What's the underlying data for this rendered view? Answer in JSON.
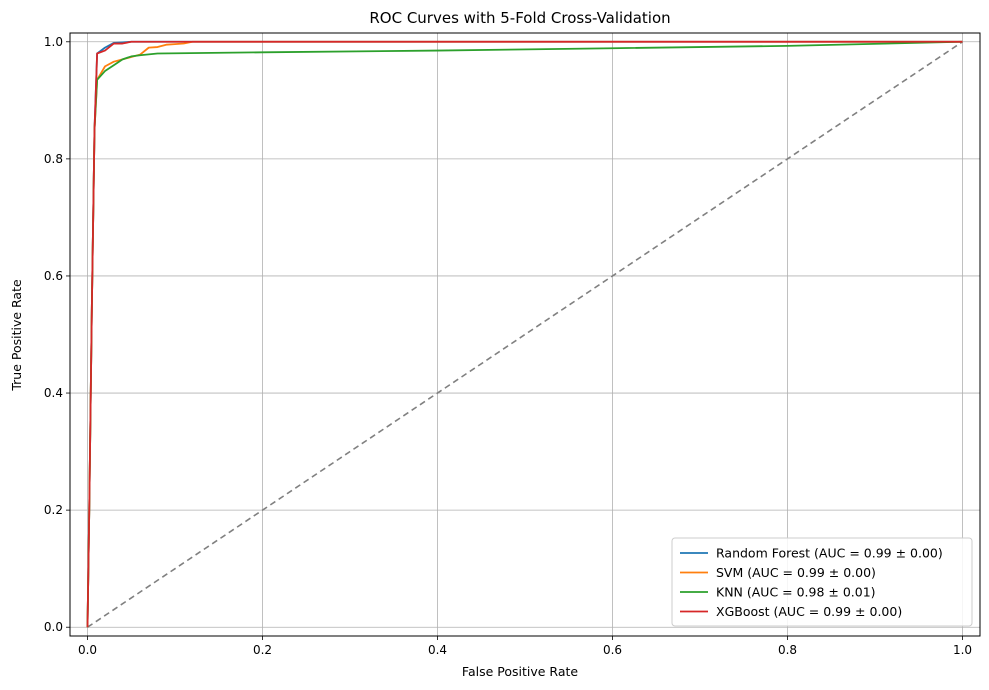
{
  "chart_data": {
    "type": "line",
    "title": "ROC Curves with 5-Fold Cross-Validation",
    "xlabel": "False Positive Rate",
    "ylabel": "True Positive Rate",
    "xlim": [
      -0.02,
      1.02
    ],
    "ylim": [
      -0.015,
      1.015
    ],
    "xticks": [
      "0.0",
      "0.2",
      "0.4",
      "0.6",
      "0.8",
      "1.0"
    ],
    "yticks": [
      "0.0",
      "0.2",
      "0.4",
      "0.6",
      "0.8",
      "1.0"
    ],
    "grid": true,
    "legend_position": "lower-right",
    "series": [
      {
        "name": "Random Forest (AUC = 0.99 ± 0.00)",
        "color": "#1f77b4",
        "points": [
          [
            0,
            0
          ],
          [
            0.002,
            0.2
          ],
          [
            0.005,
            0.55
          ],
          [
            0.008,
            0.85
          ],
          [
            0.011,
            0.98
          ],
          [
            0.02,
            0.99
          ],
          [
            0.03,
            0.998
          ],
          [
            0.04,
            0.999
          ],
          [
            0.05,
            1.0
          ],
          [
            1.0,
            1.0
          ]
        ]
      },
      {
        "name": "SVM (AUC = 0.99 ± 0.00)",
        "color": "#ff7f0e",
        "points": [
          [
            0,
            0
          ],
          [
            0.002,
            0.2
          ],
          [
            0.005,
            0.55
          ],
          [
            0.008,
            0.85
          ],
          [
            0.011,
            0.935
          ],
          [
            0.02,
            0.958
          ],
          [
            0.03,
            0.966
          ],
          [
            0.04,
            0.97
          ],
          [
            0.05,
            0.974
          ],
          [
            0.06,
            0.978
          ],
          [
            0.07,
            0.99
          ],
          [
            0.08,
            0.991
          ],
          [
            0.09,
            0.995
          ],
          [
            0.1,
            0.996
          ],
          [
            0.11,
            0.997
          ],
          [
            0.12,
            1.0
          ],
          [
            1.0,
            1.0
          ]
        ]
      },
      {
        "name": "KNN (AUC = 0.98 ± 0.01)",
        "color": "#2ca02c",
        "points": [
          [
            0,
            0
          ],
          [
            0.002,
            0.2
          ],
          [
            0.005,
            0.55
          ],
          [
            0.008,
            0.85
          ],
          [
            0.011,
            0.935
          ],
          [
            0.02,
            0.95
          ],
          [
            0.03,
            0.96
          ],
          [
            0.04,
            0.97
          ],
          [
            0.05,
            0.975
          ],
          [
            0.06,
            0.977
          ],
          [
            0.08,
            0.98
          ],
          [
            0.2,
            0.982
          ],
          [
            0.4,
            0.985
          ],
          [
            0.6,
            0.989
          ],
          [
            0.8,
            0.993
          ],
          [
            1.0,
            1.0
          ]
        ]
      },
      {
        "name": "XGBoost (AUC = 0.99 ± 0.00)",
        "color": "#d62728",
        "points": [
          [
            0,
            0
          ],
          [
            0.002,
            0.2
          ],
          [
            0.005,
            0.55
          ],
          [
            0.008,
            0.85
          ],
          [
            0.011,
            0.98
          ],
          [
            0.02,
            0.985
          ],
          [
            0.03,
            0.997
          ],
          [
            0.04,
            0.997
          ],
          [
            0.05,
            1.0
          ],
          [
            1.0,
            1.0
          ]
        ]
      }
    ],
    "reference_line": {
      "color": "#808080",
      "style": "dashed",
      "points": [
        [
          0,
          0
        ],
        [
          1,
          1
        ]
      ]
    }
  }
}
